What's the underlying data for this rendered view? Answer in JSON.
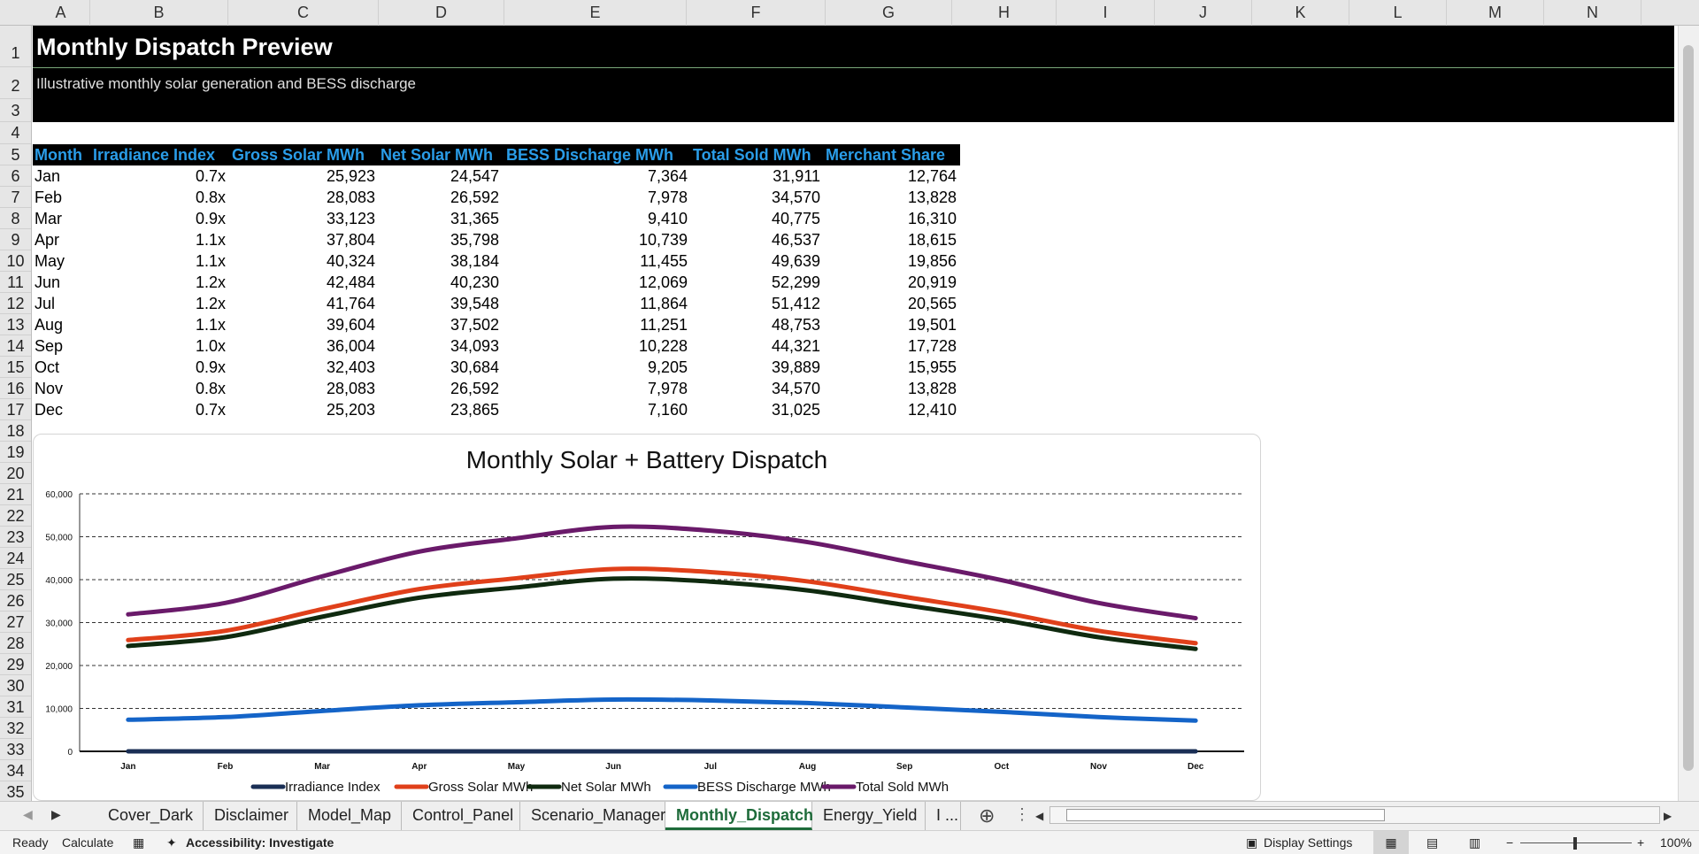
{
  "columns": [
    "A",
    "B",
    "C",
    "D",
    "E",
    "F",
    "G",
    "H",
    "I",
    "J",
    "K",
    "L",
    "M",
    "N"
  ],
  "rows": [
    "1",
    "2",
    "3",
    "4",
    "5",
    "6",
    "7",
    "8",
    "9",
    "10",
    "11",
    "12",
    "13",
    "14",
    "15",
    "16",
    "17",
    "18",
    "19",
    "20",
    "21",
    "22",
    "23",
    "24",
    "25",
    "26",
    "27",
    "28",
    "29",
    "30",
    "31",
    "32",
    "33",
    "34",
    "35"
  ],
  "banner": {
    "title": "Monthly Dispatch Preview",
    "subtitle": "Illustrative monthly solar generation and BESS discharge"
  },
  "table": {
    "headers": [
      "Month",
      "Irradiance Index",
      "Gross Solar MWh",
      "Net Solar MWh",
      "BESS Discharge MWh",
      "Total Sold MWh",
      "Merchant Share"
    ],
    "rows": [
      [
        "Jan",
        "0.7x",
        "25,923",
        "24,547",
        "7,364",
        "31,911",
        "12,764"
      ],
      [
        "Feb",
        "0.8x",
        "28,083",
        "26,592",
        "7,978",
        "34,570",
        "13,828"
      ],
      [
        "Mar",
        "0.9x",
        "33,123",
        "31,365",
        "9,410",
        "40,775",
        "16,310"
      ],
      [
        "Apr",
        "1.1x",
        "37,804",
        "35,798",
        "10,739",
        "46,537",
        "18,615"
      ],
      [
        "May",
        "1.1x",
        "40,324",
        "38,184",
        "11,455",
        "49,639",
        "19,856"
      ],
      [
        "Jun",
        "1.2x",
        "42,484",
        "40,230",
        "12,069",
        "52,299",
        "20,919"
      ],
      [
        "Jul",
        "1.2x",
        "41,764",
        "39,548",
        "11,864",
        "51,412",
        "20,565"
      ],
      [
        "Aug",
        "1.1x",
        "39,604",
        "37,502",
        "11,251",
        "48,753",
        "19,501"
      ],
      [
        "Sep",
        "1.0x",
        "36,004",
        "34,093",
        "10,228",
        "44,321",
        "17,728"
      ],
      [
        "Oct",
        "0.9x",
        "32,403",
        "30,684",
        "9,205",
        "39,889",
        "15,955"
      ],
      [
        "Nov",
        "0.8x",
        "28,083",
        "26,592",
        "7,978",
        "34,570",
        "13,828"
      ],
      [
        "Dec",
        "0.7x",
        "25,203",
        "23,865",
        "7,160",
        "31,025",
        "12,410"
      ]
    ]
  },
  "chart_data": {
    "type": "line",
    "title": "Monthly Solar + Battery Dispatch",
    "categories": [
      "Jan",
      "Feb",
      "Mar",
      "Apr",
      "May",
      "Jun",
      "Jul",
      "Aug",
      "Sep",
      "Oct",
      "Nov",
      "Dec"
    ],
    "ylim": [
      0,
      60000
    ],
    "yticks": [
      "0",
      "10,000",
      "20,000",
      "30,000",
      "40,000",
      "50,000",
      "60,000"
    ],
    "grid": true,
    "legend_position": "bottom",
    "series": [
      {
        "name": "Irradiance Index",
        "color": "#1a2f55",
        "values": [
          0.7,
          0.8,
          0.9,
          1.1,
          1.1,
          1.2,
          1.2,
          1.1,
          1.0,
          0.9,
          0.8,
          0.7
        ]
      },
      {
        "name": "Gross Solar MWh",
        "color": "#e0401a",
        "values": [
          25923,
          28083,
          33123,
          37804,
          40324,
          42484,
          41764,
          39604,
          36004,
          32403,
          28083,
          25203
        ]
      },
      {
        "name": "Net Solar MWh",
        "color": "#0f2a0f",
        "values": [
          24547,
          26592,
          31365,
          35798,
          38184,
          40230,
          39548,
          37502,
          34093,
          30684,
          26592,
          23865
        ]
      },
      {
        "name": "BESS Discharge MWh",
        "color": "#1464c8",
        "values": [
          7364,
          7978,
          9410,
          10739,
          11455,
          12069,
          11864,
          11251,
          10228,
          9205,
          7978,
          7160
        ]
      },
      {
        "name": "Total Sold MWh",
        "color": "#6a1a6a",
        "values": [
          31911,
          34570,
          40775,
          46537,
          49639,
          52299,
          51412,
          48753,
          44321,
          39889,
          34570,
          31025
        ]
      }
    ]
  },
  "sheet_tabs": [
    "Cover_Dark",
    "Disclaimer",
    "Model_Map",
    "Control_Panel",
    "Scenario_Manager",
    "Monthly_Dispatch",
    "Energy_Yield",
    "I ..."
  ],
  "active_tab": "Monthly_Dispatch",
  "status": {
    "ready": "Ready",
    "calculate": "Calculate",
    "accessibility": "Accessibility: Investigate",
    "display_settings": "Display Settings",
    "zoom": "100%"
  }
}
